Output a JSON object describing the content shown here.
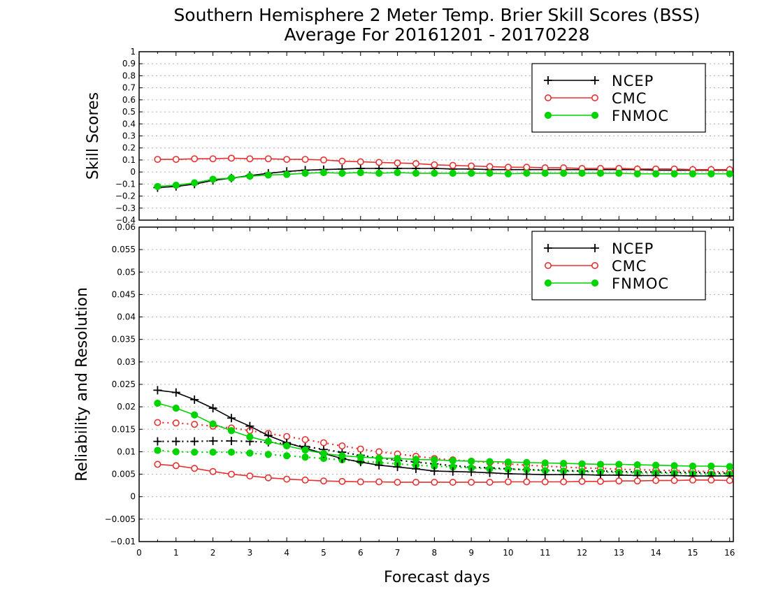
{
  "title_line1": "Southern Hemisphere 2 Meter Temp. Brier Skill Scores (BSS)",
  "title_line2": "Average For 20161201 - 20170228",
  "xlabel": "Forecast days",
  "colors": {
    "NCEP": "#000000",
    "CMC": "#e83030",
    "FNMOC": "#00d400",
    "grid": "#b0b0b0"
  },
  "chart_data": [
    {
      "type": "line",
      "ylabel": "Skill Scores",
      "xlim": [
        0,
        16.1
      ],
      "ylim": [
        -0.4,
        1
      ],
      "x_ticks": [
        "0",
        "1",
        "2",
        "3",
        "4",
        "5",
        "6",
        "7",
        "8",
        "9",
        "10",
        "11",
        "12",
        "13",
        "14",
        "15",
        "16"
      ],
      "y_ticks": [
        "−0.4",
        "−0.3",
        "−0.2",
        "−0.1",
        "0",
        "0.1",
        "0.2",
        "0.3",
        "0.4",
        "0.5",
        "0.6",
        "0.7",
        "0.8",
        "0.9",
        "1"
      ],
      "grid": true,
      "legend_position": "top-right",
      "x": [
        0.5,
        1,
        1.5,
        2,
        2.5,
        3,
        3.5,
        4,
        4.5,
        5,
        5.5,
        6,
        6.5,
        7,
        7.5,
        8,
        8.5,
        9,
        9.5,
        10,
        10.5,
        11,
        11.5,
        12,
        12.5,
        13,
        13.5,
        14,
        14.5,
        15,
        15.5,
        16
      ],
      "series": [
        {
          "name": "NCEP",
          "marker": "plus",
          "style": "solid",
          "values": [
            -0.13,
            -0.12,
            -0.1,
            -0.07,
            -0.05,
            -0.03,
            -0.01,
            0.005,
            0.015,
            0.02,
            0.025,
            0.03,
            0.03,
            0.03,
            0.03,
            0.03,
            0.025,
            0.025,
            0.02,
            0.02,
            0.02,
            0.02,
            0.02,
            0.02,
            0.02,
            0.02,
            0.02,
            0.015,
            0.015,
            0.015,
            0.015,
            0.015
          ]
        },
        {
          "name": "CMC",
          "marker": "open-circle",
          "style": "solid",
          "values": [
            0.105,
            0.105,
            0.11,
            0.11,
            0.115,
            0.11,
            0.11,
            0.105,
            0.105,
            0.1,
            0.09,
            0.085,
            0.08,
            0.075,
            0.07,
            0.06,
            0.055,
            0.05,
            0.045,
            0.04,
            0.04,
            0.035,
            0.035,
            0.03,
            0.03,
            0.03,
            0.025,
            0.025,
            0.025,
            0.02,
            0.02,
            0.02
          ]
        },
        {
          "name": "FNMOC",
          "marker": "filled-circle",
          "style": "solid",
          "values": [
            -0.12,
            -0.11,
            -0.09,
            -0.06,
            -0.05,
            -0.035,
            -0.025,
            -0.02,
            -0.01,
            -0.005,
            -0.01,
            -0.005,
            -0.01,
            -0.005,
            -0.01,
            -0.01,
            -0.01,
            -0.01,
            -0.01,
            -0.015,
            -0.01,
            -0.01,
            -0.01,
            -0.01,
            -0.01,
            -0.01,
            -0.015,
            -0.015,
            -0.015,
            -0.015,
            -0.015,
            -0.015
          ]
        }
      ]
    },
    {
      "type": "line",
      "ylabel": "Reliability and Resolution",
      "xlim": [
        0,
        16.1
      ],
      "ylim": [
        -0.01,
        0.06
      ],
      "x_ticks": [
        "0",
        "1",
        "2",
        "3",
        "4",
        "5",
        "6",
        "7",
        "8",
        "9",
        "10",
        "11",
        "12",
        "13",
        "14",
        "15",
        "16"
      ],
      "y_ticks": [
        "−0.01",
        "−0.005",
        "0",
        "0.005",
        "0.01",
        "0.015",
        "0.02",
        "0.025",
        "0.03",
        "0.035",
        "0.04",
        "0.045",
        "0.05",
        "0.055",
        "0.06"
      ],
      "grid": true,
      "legend_position": "top-right",
      "x": [
        0.5,
        1,
        1.5,
        2,
        2.5,
        3,
        3.5,
        4,
        4.5,
        5,
        5.5,
        6,
        6.5,
        7,
        7.5,
        8,
        8.5,
        9,
        9.5,
        10,
        10.5,
        11,
        11.5,
        12,
        12.5,
        13,
        13.5,
        14,
        14.5,
        15,
        15.5,
        16
      ],
      "series": [
        {
          "name": "NCEP",
          "marker": "plus",
          "style": "solid",
          "values": [
            0.0237,
            0.0232,
            0.0216,
            0.0197,
            0.0175,
            0.0157,
            0.0136,
            0.012,
            0.0108,
            0.0096,
            0.0085,
            0.0077,
            0.007,
            0.0066,
            0.0062,
            0.0057,
            0.0056,
            0.0055,
            0.0053,
            0.0051,
            0.005,
            0.0049,
            0.0049,
            0.0049,
            0.0048,
            0.0048,
            0.0047,
            0.0047,
            0.0047,
            0.0046,
            0.0046,
            0.0046
          ]
        },
        {
          "name": "CMC",
          "marker": "open-circle",
          "style": "solid",
          "values": [
            0.0072,
            0.0069,
            0.0063,
            0.0056,
            0.005,
            0.0046,
            0.0042,
            0.0039,
            0.0037,
            0.0035,
            0.0034,
            0.0033,
            0.0033,
            0.0032,
            0.0032,
            0.0032,
            0.0032,
            0.0032,
            0.0032,
            0.0033,
            0.0033,
            0.0033,
            0.0033,
            0.0034,
            0.0034,
            0.0035,
            0.0035,
            0.0036,
            0.0036,
            0.0037,
            0.0037,
            0.0036
          ]
        },
        {
          "name": "FNMOC",
          "marker": "filled-circle",
          "style": "solid",
          "values": [
            0.0208,
            0.0197,
            0.0182,
            0.0162,
            0.0147,
            0.0133,
            0.0123,
            0.0113,
            0.0104,
            0.0096,
            0.0091,
            0.0088,
            0.0086,
            0.0085,
            0.0083,
            0.0082,
            0.008,
            0.0079,
            0.0078,
            0.0077,
            0.0076,
            0.0075,
            0.0074,
            0.0073,
            0.0072,
            0.0072,
            0.0071,
            0.007,
            0.0069,
            0.0068,
            0.0068,
            0.0067
          ]
        },
        {
          "marker": "plus",
          "style": "dotted",
          "color_of": "NCEP",
          "values": [
            0.0123,
            0.0123,
            0.0123,
            0.0124,
            0.0124,
            0.0123,
            0.0121,
            0.0117,
            0.0112,
            0.0105,
            0.0099,
            0.0092,
            0.0086,
            0.0081,
            0.0077,
            0.0073,
            0.0069,
            0.0066,
            0.0064,
            0.0062,
            0.006,
            0.0059,
            0.0058,
            0.0057,
            0.0057,
            0.0056,
            0.0055,
            0.0055,
            0.0054,
            0.0054,
            0.0053,
            0.0052
          ]
        },
        {
          "marker": "open-circle",
          "style": "dotted",
          "color_of": "CMC",
          "values": [
            0.0165,
            0.0164,
            0.0161,
            0.0157,
            0.0153,
            0.0147,
            0.0141,
            0.0134,
            0.0127,
            0.012,
            0.0113,
            0.0106,
            0.01,
            0.0095,
            0.009,
            0.0085,
            0.0082,
            0.0079,
            0.0076,
            0.0073,
            0.007,
            0.0068,
            0.0066,
            0.0064,
            0.0063,
            0.0061,
            0.006,
            0.0059,
            0.0058,
            0.0057,
            0.0056,
            0.0055
          ]
        },
        {
          "marker": "filled-circle",
          "style": "dotted",
          "color_of": "FNMOC",
          "values": [
            0.0103,
            0.01,
            0.0099,
            0.0099,
            0.0099,
            0.0097,
            0.0094,
            0.0091,
            0.0088,
            0.0085,
            0.0082,
            0.0079,
            0.0076,
            0.0073,
            0.007,
            0.0068,
            0.0066,
            0.0064,
            0.0062,
            0.0061,
            0.006,
            0.0058,
            0.0057,
            0.0056,
            0.0055,
            0.0054,
            0.0053,
            0.0053,
            0.0052,
            0.0051,
            0.005,
            0.005
          ]
        }
      ]
    }
  ]
}
